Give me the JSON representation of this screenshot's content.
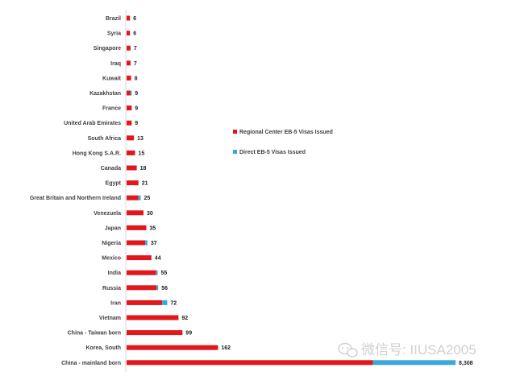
{
  "chart_data": {
    "type": "bar",
    "orientation": "horizontal",
    "stacked": true,
    "categories": [
      "Brazil",
      "Syria",
      "Singapore",
      "Iraq",
      "Kuwait",
      "Kazakhstan",
      "France",
      "United Arab Emirates",
      "South Africa",
      "Hong Kong S.A.R.",
      "Canada",
      "Egypt",
      "Great Britain and Northern Ireland",
      "Venezuela",
      "Japan",
      "Nigeria",
      "Mexico",
      "India",
      "Russia",
      "Iran",
      "Vietnam",
      "China - Taiwan born",
      "Korea, South",
      "China - mainland born"
    ],
    "totals": [
      6,
      6,
      7,
      7,
      8,
      9,
      9,
      9,
      13,
      15,
      18,
      21,
      25,
      30,
      35,
      37,
      44,
      55,
      56,
      72,
      92,
      99,
      162,
      8308
    ],
    "total_labels": [
      "6",
      "6",
      "7",
      "7",
      "8",
      "9",
      "9",
      "9",
      "13",
      "15",
      "18",
      "21",
      "25",
      "30",
      "35",
      "37",
      "44",
      "55",
      "56",
      "72",
      "92",
      "99",
      "162",
      "8,308"
    ],
    "series": [
      {
        "name": "Regional Center EB-5 Visas Issued",
        "color": "#e3161c",
        "values": [
          6,
          6,
          7,
          7,
          8,
          7,
          9,
          9,
          13,
          15,
          18,
          21,
          21,
          30,
          35,
          33,
          44,
          52,
          53,
          63,
          92,
          99,
          162,
          6220
        ]
      },
      {
        "name": "Direct EB-5 Visas Issued",
        "color": "#3aa8d8",
        "values": [
          0,
          0,
          0,
          0,
          0,
          2,
          0,
          0,
          0,
          0,
          0,
          0,
          4,
          0,
          0,
          4,
          0,
          3,
          3,
          9,
          0,
          0,
          0,
          2088
        ]
      }
    ],
    "legend_position": "right",
    "grid": false
  },
  "watermark": {
    "text": "微信号: IIUSA2005",
    "icon": "wechat-icon"
  }
}
